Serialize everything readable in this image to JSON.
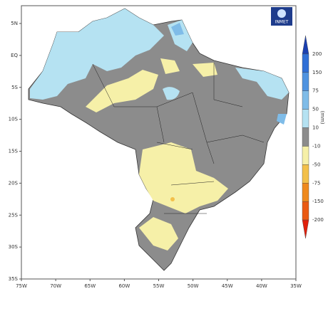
{
  "map": {
    "logo": "INMET",
    "lon_labels": [
      "75W",
      "70W",
      "65W",
      "60W",
      "55W",
      "50W",
      "45W",
      "40W",
      "35W"
    ],
    "lat_labels": [
      "5N",
      "EQ",
      "5S",
      "10S",
      "15S",
      "20S",
      "25S",
      "30S",
      "35S"
    ],
    "legend": {
      "unit": "(mm)",
      "labels": [
        "200",
        "150",
        "75",
        "50",
        "10",
        "-10",
        "-50",
        "-75",
        "-150",
        "-200"
      ],
      "colors": [
        "#1a3fb0",
        "#2f6fd6",
        "#4f93e0",
        "#7fbce8",
        "#b5e2f2",
        "#8c8c8c",
        "#f6f0a8",
        "#f3c04a",
        "#ef8a1e",
        "#ea5a12",
        "#e0200c"
      ]
    }
  }
}
